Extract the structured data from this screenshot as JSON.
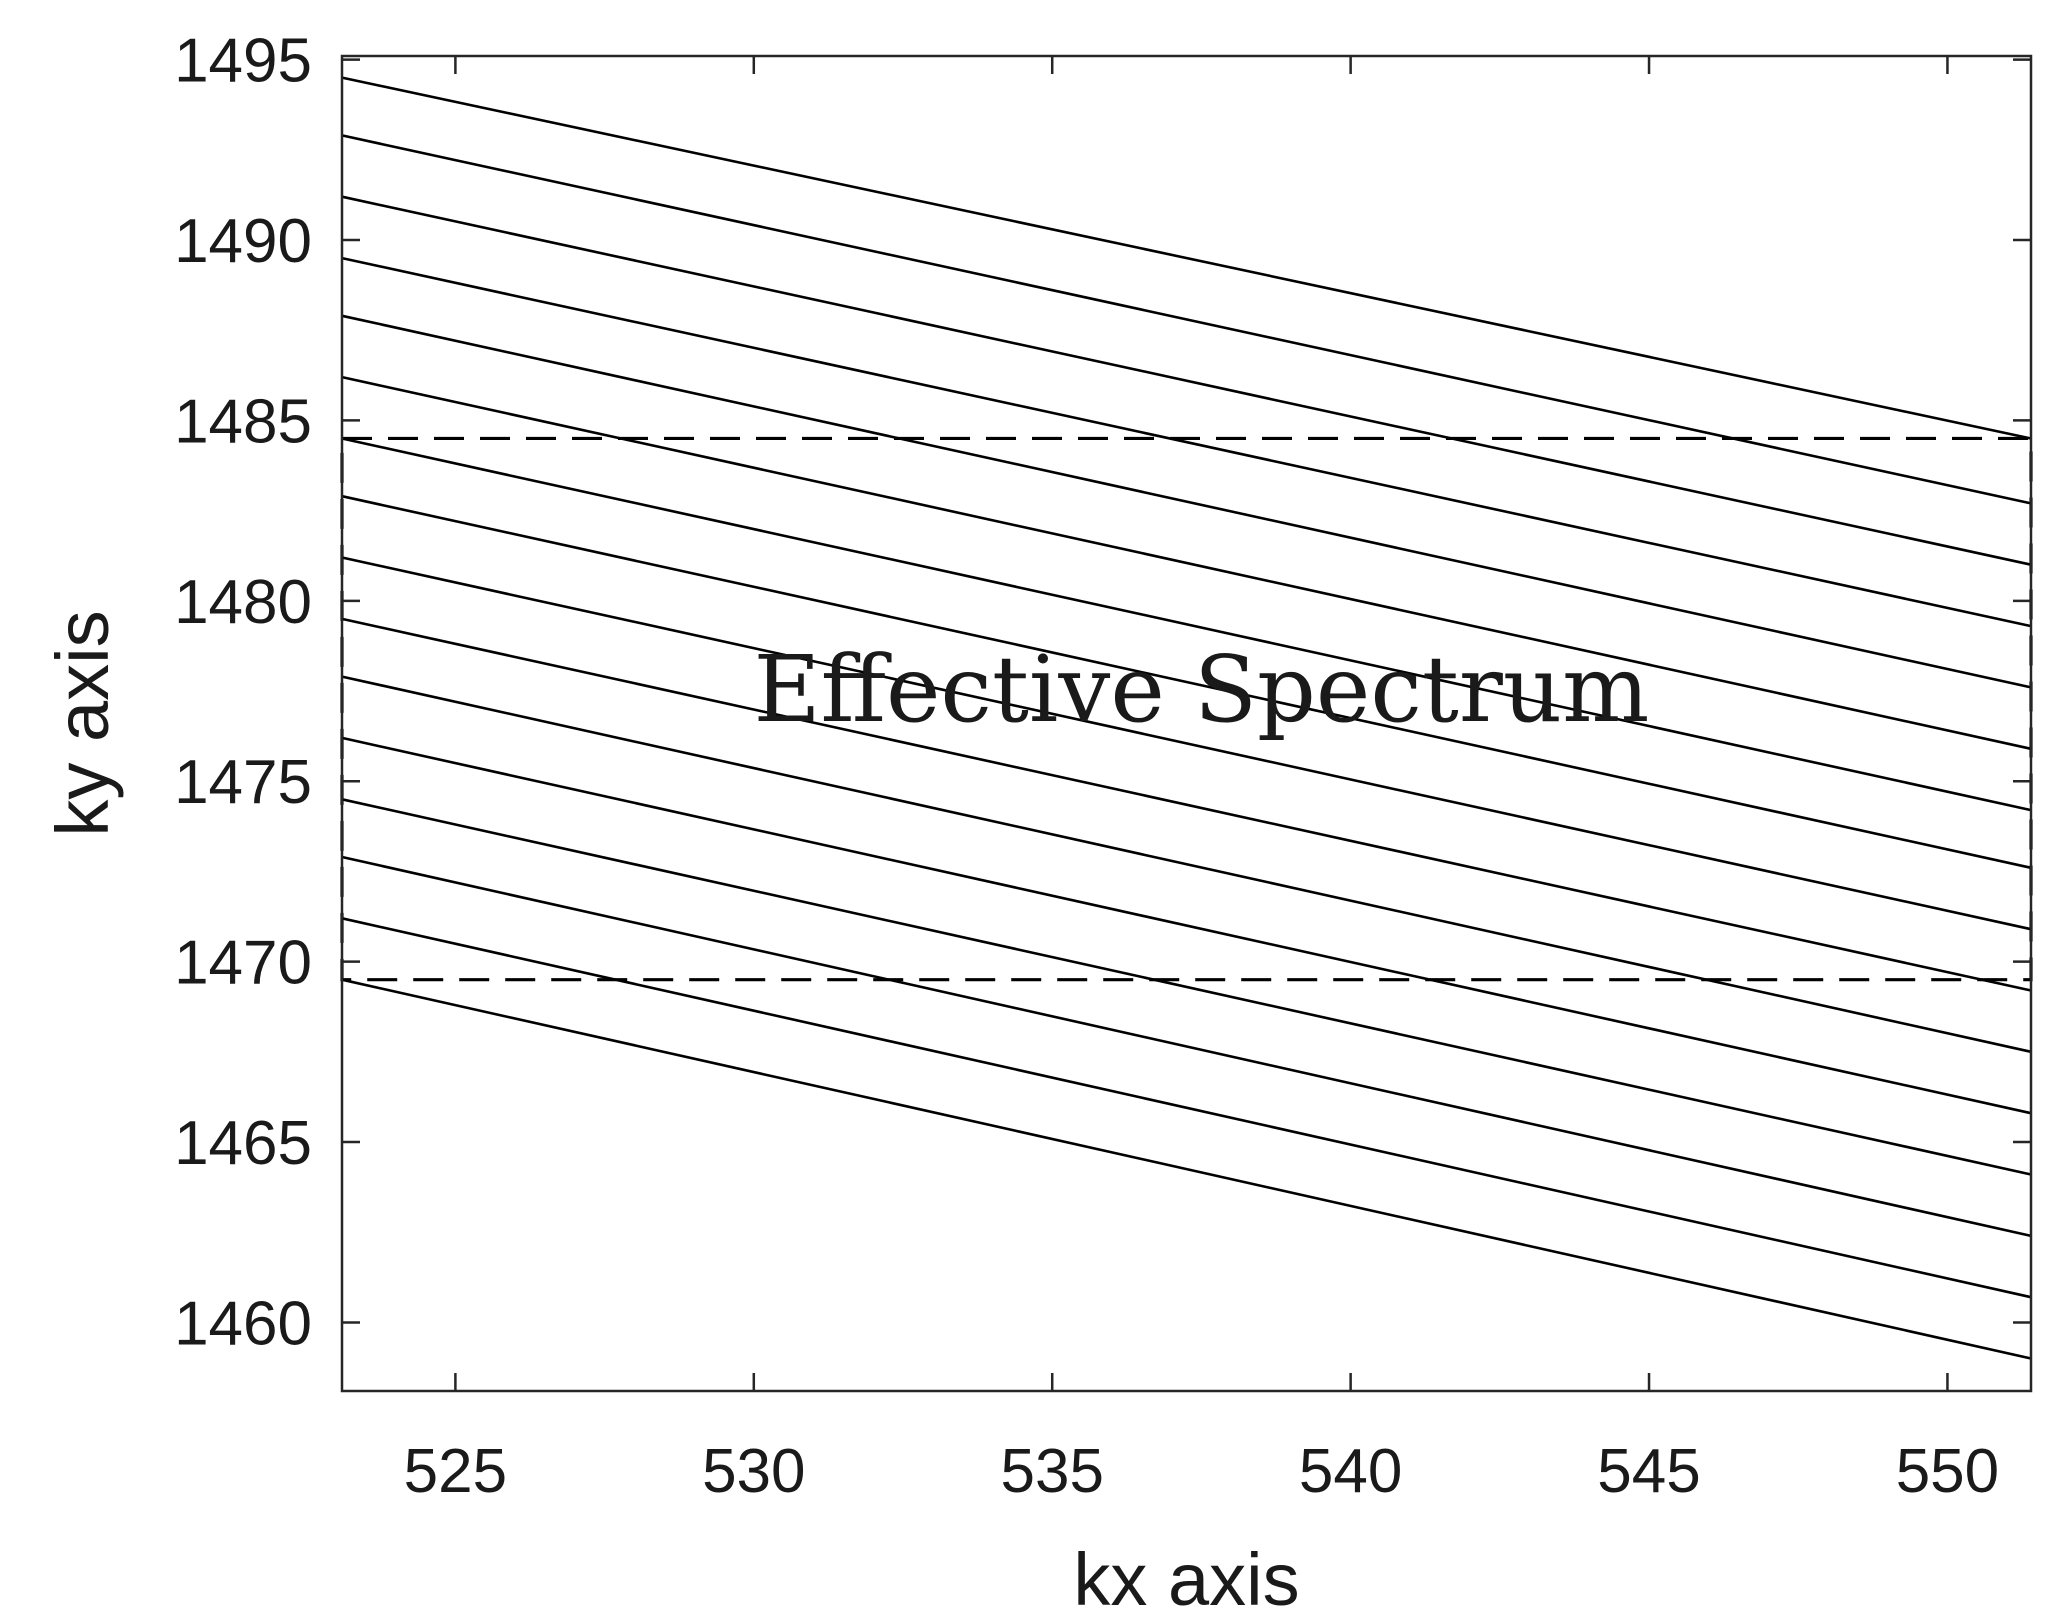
{
  "chart_data": {
    "type": "line",
    "xlabel": "kx axis",
    "ylabel": "ky axis",
    "xlim": [
      523.1,
      551.4
    ],
    "ylim": [
      1458.1,
      1495.1
    ],
    "x_ticks": [
      525,
      530,
      535,
      540,
      545,
      550
    ],
    "y_ticks": [
      1460,
      1465,
      1470,
      1475,
      1480,
      1485,
      1490,
      1495
    ],
    "grid": false,
    "series": [
      {
        "x": [
          523.1,
          551.4
        ],
        "y": [
          1494.5,
          1484.5
        ]
      },
      {
        "x": [
          523.1,
          551.4
        ],
        "y": [
          1492.9,
          1482.7
        ]
      },
      {
        "x": [
          523.1,
          551.4
        ],
        "y": [
          1491.2,
          1481.0
        ]
      },
      {
        "x": [
          523.1,
          551.4
        ],
        "y": [
          1489.5,
          1479.3
        ]
      },
      {
        "x": [
          523.1,
          551.4
        ],
        "y": [
          1487.9,
          1477.6
        ]
      },
      {
        "x": [
          523.1,
          551.4
        ],
        "y": [
          1486.2,
          1475.9
        ]
      },
      {
        "x": [
          523.1,
          551.4
        ],
        "y": [
          1484.5,
          1474.2
        ]
      },
      {
        "x": [
          523.1,
          551.4
        ],
        "y": [
          1482.9,
          1472.6
        ]
      },
      {
        "x": [
          523.1,
          551.4
        ],
        "y": [
          1481.2,
          1470.9
        ]
      },
      {
        "x": [
          523.1,
          551.4
        ],
        "y": [
          1479.5,
          1469.2
        ]
      },
      {
        "x": [
          523.1,
          551.4
        ],
        "y": [
          1477.9,
          1467.5
        ]
      },
      {
        "x": [
          523.1,
          551.4
        ],
        "y": [
          1476.2,
          1465.8
        ]
      },
      {
        "x": [
          523.1,
          551.4
        ],
        "y": [
          1474.5,
          1464.1
        ]
      },
      {
        "x": [
          523.1,
          551.4
        ],
        "y": [
          1472.9,
          1462.4
        ]
      },
      {
        "x": [
          523.1,
          551.4
        ],
        "y": [
          1471.2,
          1460.7
        ]
      },
      {
        "x": [
          523.1,
          551.4
        ],
        "y": [
          1469.5,
          1459.0
        ]
      }
    ],
    "region": {
      "x": [
        523.1,
        551.4
      ],
      "y": [
        1469.5,
        1484.5
      ],
      "style": "dashed",
      "label": "Effective Spectrum",
      "label_position": {
        "x": 537.5,
        "y": 1477.5
      }
    },
    "colors": {
      "lines": "#000000",
      "axes": "#262626",
      "text": "#1a1a1a"
    }
  }
}
